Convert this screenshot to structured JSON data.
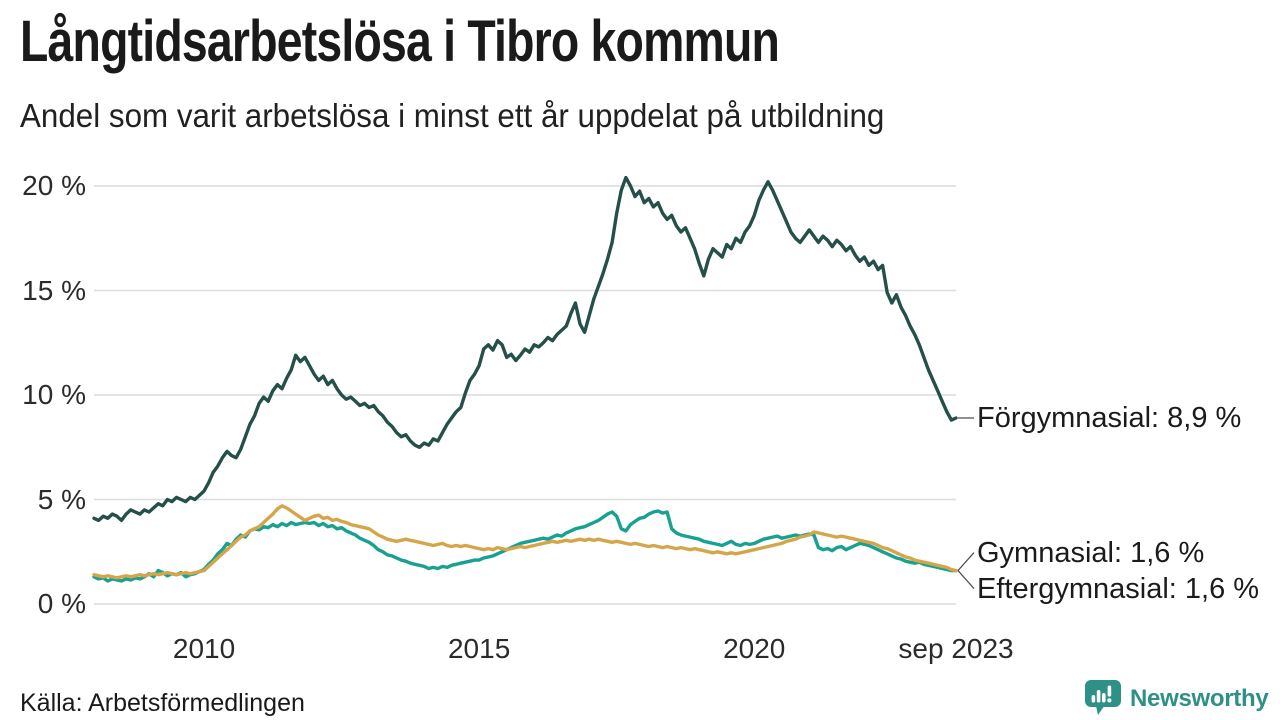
{
  "header": {
    "title": "Långtidsarbetslösa i Tibro kommun",
    "subtitle": "Andel som varit arbetslösa i minst ett år uppdelat på utbildning"
  },
  "footer": {
    "source": "Källa: Arbetsförmedlingen",
    "brand": "Newsworthy"
  },
  "colors": {
    "brand_teal": "#2f9088",
    "gridline": "#dcdcdc",
    "connector": "#555555",
    "tick_text": "#2b2b2b",
    "title_text": "#1a1a1a"
  },
  "chart_data": {
    "type": "line",
    "title": "Långtidsarbetslösa i Tibro kommun",
    "subtitle": "Andel som varit arbetslösa i minst ett år uppdelat på utbildning",
    "unit": "%",
    "x_start": "jan 2008",
    "x_end": "sep 2023",
    "points_per_series": 189,
    "ylim": [
      0,
      21
    ],
    "grid": "horizontal-only",
    "legend_position": "end-of-line-labels",
    "y_ticks": [
      {
        "value": 0,
        "label": "0 %"
      },
      {
        "value": 5,
        "label": "5 %"
      },
      {
        "value": 10,
        "label": "10 %"
      },
      {
        "value": 15,
        "label": "15 %"
      },
      {
        "value": 20,
        "label": "20 %"
      }
    ],
    "x_ticks": [
      {
        "label": "2010",
        "month_index": 24
      },
      {
        "label": "2015",
        "month_index": 84
      },
      {
        "label": "2020",
        "month_index": 144
      },
      {
        "label": "sep 2023",
        "month_index": 188
      }
    ],
    "series": [
      {
        "name": "Förgymnasial",
        "end_label": "Förgymnasial: 8,9 %",
        "end_value": 8.9,
        "color": "#25504a",
        "values": [
          4.1,
          4.0,
          4.2,
          4.1,
          4.3,
          4.2,
          4.0,
          4.3,
          4.5,
          4.4,
          4.3,
          4.5,
          4.4,
          4.6,
          4.8,
          4.7,
          5.0,
          4.9,
          5.1,
          5.0,
          4.9,
          5.1,
          5.0,
          5.2,
          5.4,
          5.8,
          6.3,
          6.6,
          7.0,
          7.3,
          7.1,
          7.0,
          7.4,
          8.0,
          8.6,
          9.0,
          9.6,
          9.9,
          9.7,
          10.2,
          10.5,
          10.3,
          10.8,
          11.2,
          11.9,
          11.6,
          11.8,
          11.4,
          11.0,
          10.7,
          10.9,
          10.5,
          10.7,
          10.3,
          10.0,
          9.8,
          9.9,
          9.7,
          9.5,
          9.6,
          9.4,
          9.5,
          9.2,
          9.0,
          8.7,
          8.5,
          8.2,
          8.0,
          8.1,
          7.8,
          7.6,
          7.5,
          7.7,
          7.6,
          7.9,
          7.8,
          8.2,
          8.6,
          8.9,
          9.2,
          9.4,
          10.1,
          10.7,
          11.0,
          11.4,
          12.2,
          12.4,
          12.15,
          12.6,
          12.4,
          11.8,
          11.95,
          11.65,
          11.9,
          12.2,
          12.05,
          12.4,
          12.3,
          12.5,
          12.75,
          12.6,
          12.9,
          13.1,
          13.3,
          13.9,
          14.4,
          13.4,
          13.0,
          13.8,
          14.6,
          15.2,
          15.8,
          16.5,
          17.3,
          18.7,
          19.8,
          20.4,
          20.0,
          19.5,
          19.75,
          19.2,
          19.4,
          19.0,
          19.2,
          18.7,
          18.4,
          18.6,
          18.1,
          17.8,
          18.0,
          17.5,
          17.0,
          16.3,
          15.7,
          16.5,
          17.0,
          16.8,
          16.6,
          17.2,
          17.0,
          17.5,
          17.3,
          17.8,
          18.1,
          18.6,
          19.3,
          19.8,
          20.2,
          19.8,
          19.3,
          18.8,
          18.3,
          17.8,
          17.5,
          17.3,
          17.6,
          17.9,
          17.6,
          17.3,
          17.6,
          17.4,
          17.1,
          17.4,
          17.2,
          16.9,
          17.1,
          16.7,
          16.4,
          16.6,
          16.2,
          16.4,
          16.0,
          16.2,
          14.9,
          14.4,
          14.8,
          14.2,
          13.8,
          13.3,
          12.9,
          12.4,
          11.8,
          11.2,
          10.7,
          10.2,
          9.7,
          9.2,
          8.8,
          8.9
        ]
      },
      {
        "name": "Gymnasial",
        "end_label": "Gymnasial: 1,6 %",
        "end_value": 1.6,
        "color": "#18a191",
        "values": [
          1.3,
          1.2,
          1.25,
          1.1,
          1.2,
          1.15,
          1.1,
          1.2,
          1.15,
          1.25,
          1.2,
          1.3,
          1.45,
          1.3,
          1.6,
          1.5,
          1.35,
          1.45,
          1.4,
          1.5,
          1.3,
          1.4,
          1.45,
          1.55,
          1.65,
          1.9,
          2.1,
          2.4,
          2.6,
          2.9,
          2.8,
          3.1,
          3.3,
          3.2,
          3.5,
          3.6,
          3.55,
          3.7,
          3.65,
          3.8,
          3.7,
          3.85,
          3.75,
          3.9,
          3.8,
          3.85,
          3.9,
          3.85,
          3.9,
          3.75,
          3.85,
          3.7,
          3.75,
          3.6,
          3.65,
          3.5,
          3.4,
          3.3,
          3.15,
          3.05,
          2.95,
          2.8,
          2.6,
          2.5,
          2.35,
          2.3,
          2.2,
          2.1,
          2.05,
          1.95,
          1.9,
          1.85,
          1.8,
          1.7,
          1.75,
          1.7,
          1.8,
          1.75,
          1.85,
          1.9,
          1.95,
          2.0,
          2.05,
          2.1,
          2.1,
          2.2,
          2.25,
          2.3,
          2.4,
          2.5,
          2.6,
          2.7,
          2.8,
          2.9,
          2.95,
          3.0,
          3.05,
          3.1,
          3.15,
          3.1,
          3.2,
          3.3,
          3.25,
          3.4,
          3.5,
          3.6,
          3.65,
          3.7,
          3.8,
          3.9,
          4.0,
          4.15,
          4.3,
          4.4,
          4.2,
          3.6,
          3.5,
          3.8,
          3.95,
          4.1,
          4.15,
          4.3,
          4.4,
          4.45,
          4.35,
          4.4,
          3.6,
          3.4,
          3.3,
          3.25,
          3.2,
          3.15,
          3.1,
          3.0,
          2.95,
          2.9,
          2.85,
          2.8,
          2.9,
          3.0,
          2.85,
          2.8,
          2.9,
          2.85,
          2.9,
          3.0,
          3.1,
          3.15,
          3.2,
          3.25,
          3.15,
          3.2,
          3.25,
          3.3,
          3.25,
          3.3,
          3.35,
          3.3,
          2.7,
          2.6,
          2.65,
          2.55,
          2.7,
          2.75,
          2.6,
          2.7,
          2.8,
          2.9,
          2.85,
          2.8,
          2.7,
          2.6,
          2.5,
          2.4,
          2.3,
          2.2,
          2.15,
          2.05,
          2.0,
          1.95,
          2.0,
          1.9,
          1.85,
          1.8,
          1.75,
          1.7,
          1.65,
          1.6,
          1.6
        ]
      },
      {
        "name": "Eftergymnasial",
        "end_label": "Eftergymnasial: 1,6 %",
        "end_value": 1.6,
        "color": "#d5a54a",
        "values": [
          1.4,
          1.35,
          1.3,
          1.35,
          1.3,
          1.25,
          1.3,
          1.35,
          1.3,
          1.35,
          1.4,
          1.35,
          1.4,
          1.45,
          1.4,
          1.45,
          1.5,
          1.45,
          1.4,
          1.45,
          1.5,
          1.45,
          1.5,
          1.55,
          1.6,
          1.8,
          2.0,
          2.2,
          2.4,
          2.6,
          2.8,
          3.0,
          3.2,
          3.3,
          3.5,
          3.6,
          3.7,
          3.9,
          4.1,
          4.3,
          4.55,
          4.7,
          4.6,
          4.45,
          4.3,
          4.15,
          4.0,
          4.1,
          4.2,
          4.25,
          4.1,
          4.15,
          4.0,
          4.05,
          3.95,
          3.9,
          3.8,
          3.75,
          3.7,
          3.65,
          3.6,
          3.45,
          3.3,
          3.2,
          3.1,
          3.05,
          3.0,
          3.05,
          3.1,
          3.05,
          3.0,
          2.95,
          2.9,
          2.85,
          2.8,
          2.85,
          2.9,
          2.8,
          2.75,
          2.8,
          2.75,
          2.8,
          2.75,
          2.7,
          2.65,
          2.6,
          2.65,
          2.6,
          2.7,
          2.65,
          2.6,
          2.65,
          2.7,
          2.75,
          2.7,
          2.75,
          2.8,
          2.85,
          2.9,
          2.95,
          3.0,
          2.95,
          3.0,
          3.05,
          3.0,
          3.05,
          3.1,
          3.05,
          3.1,
          3.05,
          3.1,
          3.05,
          3.0,
          2.95,
          3.0,
          2.95,
          2.9,
          2.85,
          2.9,
          2.85,
          2.8,
          2.75,
          2.8,
          2.75,
          2.7,
          2.75,
          2.7,
          2.65,
          2.7,
          2.65,
          2.6,
          2.65,
          2.6,
          2.55,
          2.5,
          2.45,
          2.5,
          2.45,
          2.4,
          2.45,
          2.4,
          2.45,
          2.5,
          2.55,
          2.6,
          2.65,
          2.7,
          2.75,
          2.8,
          2.85,
          2.9,
          3.0,
          3.05,
          3.1,
          3.2,
          3.25,
          3.3,
          3.45,
          3.4,
          3.35,
          3.3,
          3.25,
          3.2,
          3.25,
          3.2,
          3.15,
          3.1,
          3.05,
          3.0,
          2.95,
          2.9,
          2.8,
          2.7,
          2.65,
          2.55,
          2.45,
          2.35,
          2.25,
          2.2,
          2.1,
          2.05,
          2.0,
          1.95,
          1.9,
          1.85,
          1.8,
          1.75,
          1.65,
          1.6
        ]
      }
    ]
  }
}
